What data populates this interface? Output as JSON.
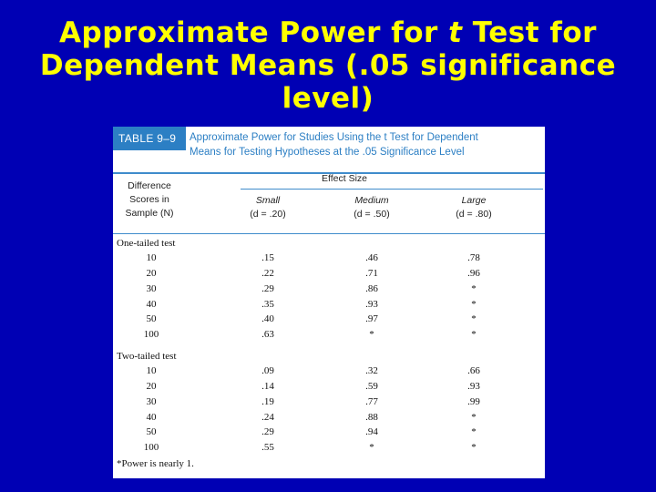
{
  "slide": {
    "title_line1_pre": "Approximate Power for ",
    "title_t": "t",
    "title_line1_post": " Test for",
    "title_line2": "Dependent Means (.05 significance",
    "title_line3": "level)"
  },
  "table": {
    "tag": "TABLE 9–9",
    "caption_line1": "Approximate Power for Studies Using the t Test for Dependent",
    "caption_line2": "Means for Testing Hypotheses at the .05 Significance Level",
    "effect_size_header": "Effect Size",
    "diff_header_line1": "Difference",
    "diff_header_line2": "Scores in",
    "diff_header_line3": "Sample (N)",
    "small_label": "Small",
    "small_sub": "(d = .20)",
    "medium_label": "Medium",
    "medium_sub": "(d = .50)",
    "large_label": "Large",
    "large_sub": "(d = .80)",
    "sections": [
      {
        "label": "One-tailed test",
        "rows": [
          {
            "n": "10",
            "small": ".15",
            "medium": ".46",
            "large": ".78"
          },
          {
            "n": "20",
            "small": ".22",
            "medium": ".71",
            "large": ".96"
          },
          {
            "n": "30",
            "small": ".29",
            "medium": ".86",
            "large": "*"
          },
          {
            "n": "40",
            "small": ".35",
            "medium": ".93",
            "large": "*"
          },
          {
            "n": "50",
            "small": ".40",
            "medium": ".97",
            "large": "*"
          },
          {
            "n": "100",
            "small": ".63",
            "medium": "*",
            "large": "*"
          }
        ]
      },
      {
        "label": "Two-tailed test",
        "rows": [
          {
            "n": "10",
            "small": ".09",
            "medium": ".32",
            "large": ".66"
          },
          {
            "n": "20",
            "small": ".14",
            "medium": ".59",
            "large": ".93"
          },
          {
            "n": "30",
            "small": ".19",
            "medium": ".77",
            "large": ".99"
          },
          {
            "n": "40",
            "small": ".24",
            "medium": ".88",
            "large": "*"
          },
          {
            "n": "50",
            "small": ".29",
            "medium": ".94",
            "large": "*"
          },
          {
            "n": "100",
            "small": ".55",
            "medium": "*",
            "large": "*"
          }
        ]
      }
    ],
    "footnote": "*Power is nearly 1."
  }
}
